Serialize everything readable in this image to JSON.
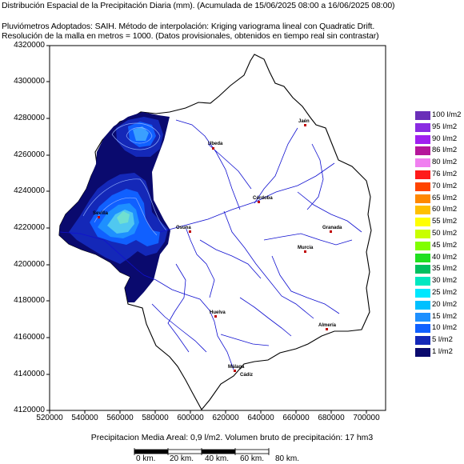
{
  "header": {
    "line1": "Distribución Espacial de la Precipitación Diaria (mm). (Acumulada de 15/06/2025 08:00 a 16/06/2025 08:00)",
    "line2": "Pluviómetros Adoptados: SAIH.  Método de interpolación: Kriging variograma lineal con Quadratic Drift.",
    "line3": "Resolución de la malla en metros = 1000. (Datos provisionales, obtenidos en tiempo real sin contrastar)"
  },
  "axes": {
    "y_ticks": [
      "4320000",
      "4300000",
      "4280000",
      "4260000",
      "4240000",
      "4220000",
      "4200000",
      "4180000",
      "4160000",
      "4140000",
      "4120000"
    ],
    "x_ticks": [
      "520000",
      "540000",
      "560000",
      "580000",
      "600000",
      "620000",
      "640000",
      "660000",
      "680000",
      "700000"
    ]
  },
  "legend": {
    "items": [
      {
        "label": "100 l/m2",
        "color": "#6a2fb8"
      },
      {
        "label": "95 l/m2",
        "color": "#8a2be2"
      },
      {
        "label": "90 l/m2",
        "color": "#a020f0"
      },
      {
        "label": "86 l/m2",
        "color": "#b5169b"
      },
      {
        "label": "80 l/m2",
        "color": "#f080f0"
      },
      {
        "label": "76 l/m2",
        "color": "#ff1a1a"
      },
      {
        "label": "70 l/m2",
        "color": "#ff4400"
      },
      {
        "label": "65 l/m2",
        "color": "#ff8800"
      },
      {
        "label": "60 l/m2",
        "color": "#ffc000"
      },
      {
        "label": "55 l/m2",
        "color": "#ffff00"
      },
      {
        "label": "50 l/m2",
        "color": "#c8ff00"
      },
      {
        "label": "45 l/m2",
        "color": "#80ff00"
      },
      {
        "label": "40 l/m2",
        "color": "#20e020"
      },
      {
        "label": "35 l/m2",
        "color": "#00c060"
      },
      {
        "label": "30 l/m2",
        "color": "#00e8c0"
      },
      {
        "label": "25 l/m2",
        "color": "#00e8ff"
      },
      {
        "label": "20 l/m2",
        "color": "#00c0ff"
      },
      {
        "label": "15 l/m2",
        "color": "#1e90ff"
      },
      {
        "label": "10 l/m2",
        "color": "#1060ff"
      },
      {
        "label": "5 l/m2",
        "color": "#1428b8"
      },
      {
        "label": "1 l/m2",
        "color": "#0a0a6e"
      }
    ]
  },
  "towns": [
    "Jaén",
    "Huelva",
    "Sevilla",
    "Córdoba",
    "Granada",
    "Málaga",
    "Almería",
    "Cádiz",
    "Osuna",
    "Murcia",
    "Ubeda"
  ],
  "footer": "Precipitacion Media Areal: 0,9 l/m2. Volumen bruto de precipitación: 17 hm3",
  "scale": {
    "labels": [
      "0 km.",
      "20 km.",
      "40 km.",
      "60 km.",
      "80 km."
    ]
  }
}
